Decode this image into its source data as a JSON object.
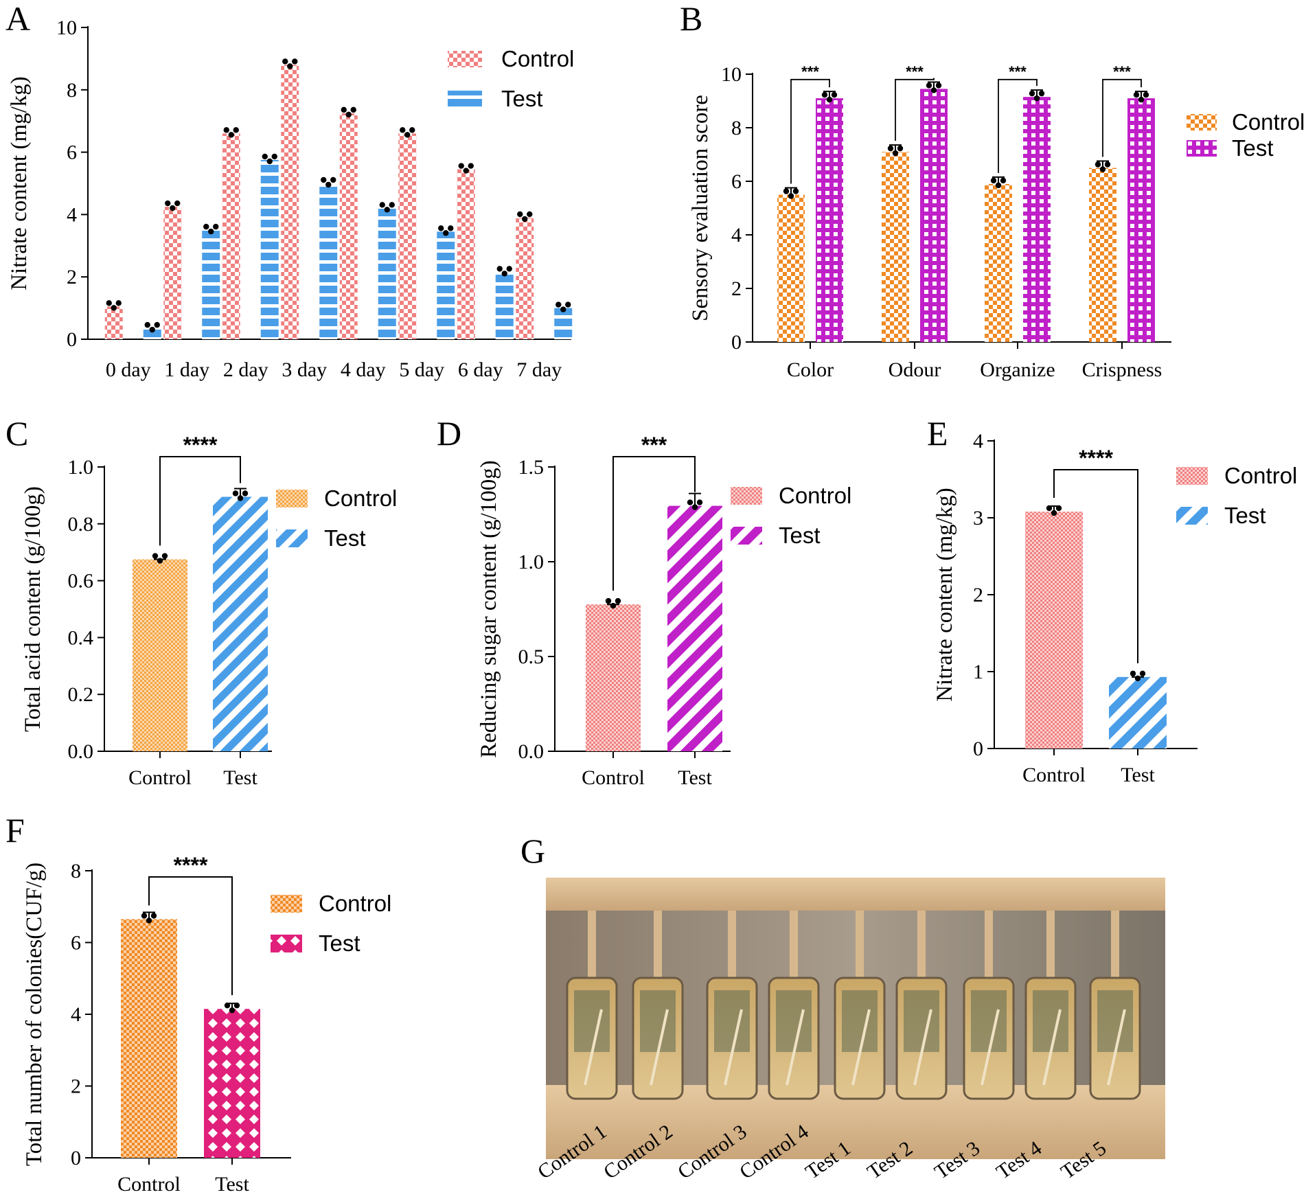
{
  "chart_data": [
    {
      "panel": "A",
      "type": "bar",
      "xlabel": "",
      "ylabel": "Nitrate content (mg/kg)",
      "ylim": [
        0,
        10
      ],
      "yticks": [
        "0",
        "2",
        "4",
        "6",
        "8",
        "10"
      ],
      "categories": [
        "0 day",
        "1 day",
        "2 day",
        "3 day",
        "4 day",
        "5 day",
        "6 day",
        "7 day"
      ],
      "series": [
        {
          "name": "Control",
          "values": [
            1.05,
            4.25,
            6.6,
            8.8,
            7.25,
            6.6,
            5.45,
            3.9
          ],
          "color": "#f08080",
          "pattern": "checker-pink"
        },
        {
          "name": "Test",
          "values": [
            0.35,
            3.5,
            5.75,
            5.0,
            4.2,
            3.45,
            2.15,
            1.0
          ],
          "color": "#4a9ee8",
          "pattern": "hstripe-blue"
        }
      ],
      "legend": [
        "Control",
        "Test"
      ],
      "legend_position": "top-right"
    },
    {
      "panel": "B",
      "type": "bar",
      "xlabel": "",
      "ylabel": "Sensory evaluation score",
      "ylim": [
        0,
        10
      ],
      "yticks": [
        "0",
        "2",
        "4",
        "6",
        "8",
        "10"
      ],
      "categories": [
        "Color",
        "Odour",
        "Organize",
        "Crispness"
      ],
      "series": [
        {
          "name": "Control",
          "values": [
            5.5,
            7.1,
            5.9,
            6.5
          ],
          "color": "#f08a24",
          "pattern": "checker-orange"
        },
        {
          "name": "Test",
          "values": [
            9.1,
            9.45,
            9.15,
            9.1
          ],
          "color": "#c020c8",
          "pattern": "grid-purple"
        }
      ],
      "significance": [
        "***",
        "***",
        "***",
        "***"
      ],
      "legend": [
        "Control",
        "Test"
      ],
      "legend_position": "right"
    },
    {
      "panel": "C",
      "type": "bar",
      "ylabel": "Total acid content (g/100g)",
      "ylim": [
        0,
        1.0
      ],
      "yticks": [
        "0.0",
        "0.2",
        "0.4",
        "0.6",
        "0.8",
        "1.0"
      ],
      "categories": [
        "Control",
        "Test"
      ],
      "values": [
        0.675,
        0.895
      ],
      "significance": "****",
      "legend": [
        "Control",
        "Test"
      ],
      "colors": [
        "#f5a442",
        "#4a9ee8"
      ]
    },
    {
      "panel": "D",
      "type": "bar",
      "ylabel": "Reducing sugar content (g/100g)",
      "ylim": [
        0,
        1.5
      ],
      "yticks": [
        "0.0",
        "0.5",
        "1.0",
        "1.5"
      ],
      "categories": [
        "Control",
        "Test"
      ],
      "values": [
        0.775,
        1.295
      ],
      "significance": "***",
      "legend": [
        "Control",
        "Test"
      ],
      "colors": [
        "#f08080",
        "#c020c8"
      ]
    },
    {
      "panel": "E",
      "type": "bar",
      "ylabel": "Nitrate content (mg/kg)",
      "ylim": [
        0,
        4
      ],
      "yticks": [
        "0",
        "1",
        "2",
        "3",
        "4"
      ],
      "categories": [
        "Control",
        "Test"
      ],
      "values": [
        3.08,
        0.93
      ],
      "significance": "****",
      "legend": [
        "Control",
        "Test"
      ],
      "colors": [
        "#f08080",
        "#4a9ee8"
      ]
    },
    {
      "panel": "F",
      "type": "bar",
      "ylabel": "Total number of colonies(CUF/g)",
      "ylim": [
        0,
        8
      ],
      "yticks": [
        "0",
        "2",
        "4",
        "6",
        "8"
      ],
      "categories": [
        "Control",
        "Test"
      ],
      "values": [
        6.65,
        4.15
      ],
      "significance": "****",
      "legend": [
        "Control",
        "Test"
      ],
      "colors": [
        "#f08a24",
        "#e0207a"
      ]
    }
  ],
  "photo": {
    "panel": "G",
    "tube_labels": [
      "Control 1",
      "Control 2",
      "Control 3",
      "Control 4",
      "Test 1",
      "Test 2",
      "Test 3",
      "Test 4",
      "Test 5"
    ]
  }
}
